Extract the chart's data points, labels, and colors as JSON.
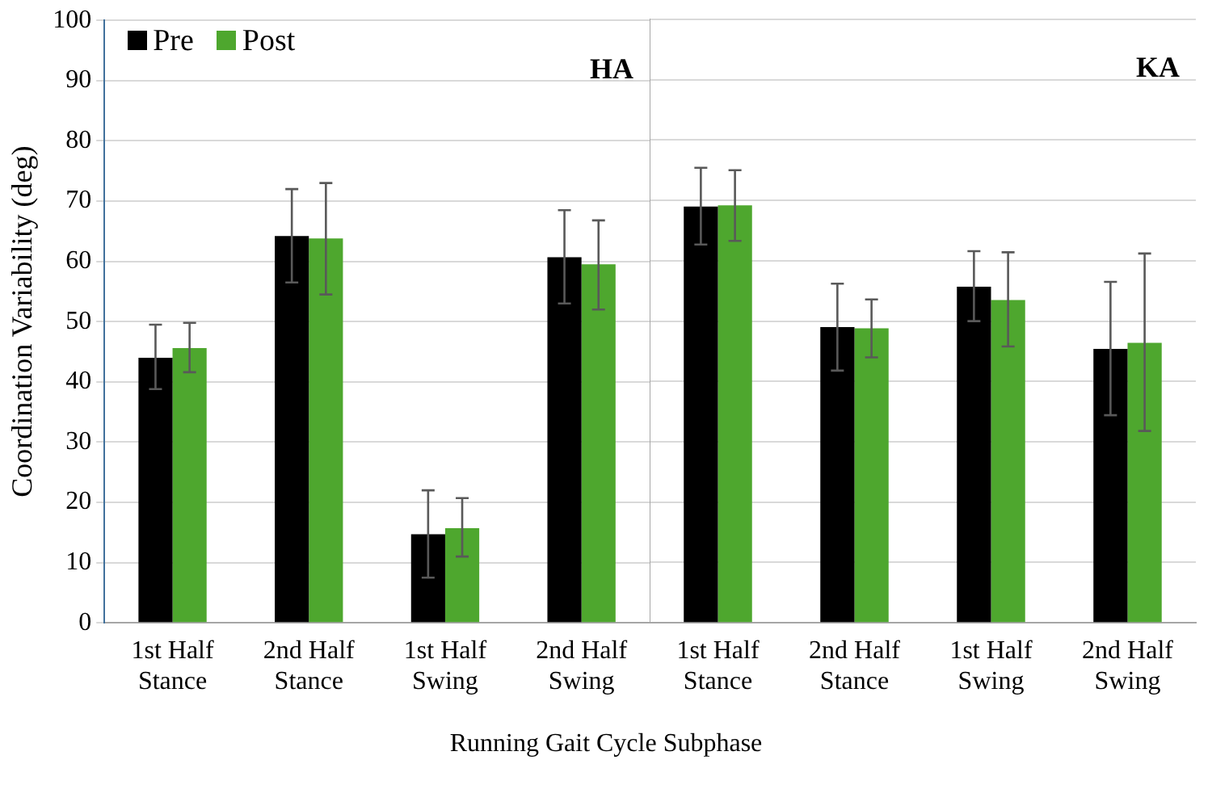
{
  "chart_data": [
    {
      "type": "bar",
      "ylabel": "Coordination Variability (deg)",
      "xlabel": "Running Gait Cycle Subphase",
      "categories": [
        "1st Half Stance",
        "2nd Half Stance",
        "1st Half Swing",
        "2nd Half Swing"
      ],
      "series": [
        {
          "name": "Pre",
          "color": "#000000",
          "values": [
            44,
            64.2,
            14.7,
            60.7
          ],
          "errors": [
            [
              38.8,
              49.5
            ],
            [
              56.5,
              72
            ],
            [
              7.5,
              22
            ],
            [
              53,
              68.5
            ]
          ]
        },
        {
          "name": "Post",
          "color": "#4ea72e",
          "values": [
            45.6,
            63.8,
            15.7,
            59.5
          ],
          "errors": [
            [
              41.6,
              49.8
            ],
            [
              54.5,
              73
            ],
            [
              11,
              20.7
            ],
            [
              52,
              66.8
            ]
          ]
        }
      ],
      "annotations": [
        "HA"
      ],
      "ylim": [
        0,
        100
      ],
      "yticks": [
        0,
        10,
        20,
        30,
        40,
        50,
        60,
        70,
        80,
        90,
        100
      ],
      "grid": "y",
      "legend": "top left"
    },
    {
      "type": "bar",
      "categories": [
        "1st Half Stance",
        "2nd Half Stance",
        "1st Half Swing",
        "2nd Half Swing"
      ],
      "series": [
        {
          "color": "#000000",
          "values": [
            69,
            49,
            55.7,
            45.4
          ],
          "errors": [
            [
              62.7,
              75.4
            ],
            [
              41.8,
              56.2
            ],
            [
              50,
              61.6
            ],
            [
              34.4,
              56.5
            ]
          ]
        },
        {
          "color": "#4ea72e",
          "values": [
            69.2,
            48.8,
            53.5,
            46.4
          ],
          "errors": [
            [
              63.3,
              75
            ],
            [
              44,
              53.6
            ],
            [
              45.8,
              61.4
            ],
            [
              31.8,
              61.2
            ]
          ]
        }
      ],
      "annotations": [
        "KA"
      ],
      "ylim": [
        0,
        100
      ],
      "yticks": [
        0,
        10,
        20,
        30,
        40,
        50,
        60,
        70,
        80,
        90,
        100
      ],
      "grid": "y",
      "tick_labels": "x"
    }
  ]
}
